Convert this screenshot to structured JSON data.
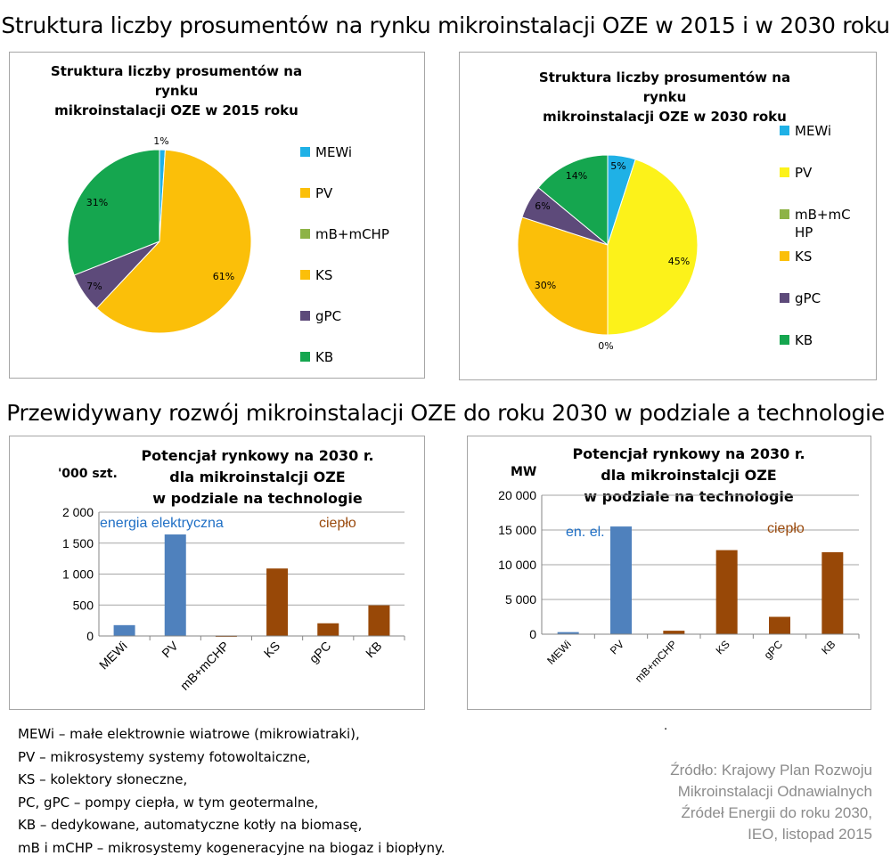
{
  "heading1": "Struktura liczby prosumentów na rynku mikroinstalacji OZE w 2015 i w 2030 roku",
  "heading2": "Przewidywany rozwój mikroinstalacji OZE do roku 2030 w podziale a technologie",
  "colors": {
    "MEWi": "#1fb1e6",
    "PV_2015": "#fbbf09",
    "PV_2030": "#fcf21a",
    "mB+mCHP": "#8db346",
    "KS": "#fbbf09",
    "gPC": "#5d4a7a",
    "KB": "#15a64f",
    "bar_electric": "#4f81bd",
    "bar_heat": "#984807",
    "label_electric": "#1f6fc5",
    "label_heat": "#9a4a0d"
  },
  "chart_data": [
    {
      "type": "pie",
      "title_line1": "Struktura liczby prosumentów na rynku",
      "title_line2": "mikroinstalacji OZE w 2015 roku",
      "legend": [
        "MEWi",
        "PV",
        "mB+mCHP",
        "KS",
        "gPC",
        "KB"
      ],
      "slices": [
        {
          "name": "MEWi",
          "value": 1,
          "label": "1%"
        },
        {
          "name": "PV",
          "value": 0,
          "label": ""
        },
        {
          "name": "mB+mCHP",
          "value": 0,
          "label": ""
        },
        {
          "name": "KS",
          "value": 61,
          "label": "61%"
        },
        {
          "name": "gPC",
          "value": 7,
          "label": "7%"
        },
        {
          "name": "KB",
          "value": 31,
          "label": "31%"
        }
      ]
    },
    {
      "type": "pie",
      "title_line1": "Struktura liczby prosumentów na rynku",
      "title_line2": "mikroinstalacji OZE w 2030 roku",
      "legend": [
        "MEWi",
        "PV",
        "mB+mC\nHP",
        "KS",
        "gPC",
        "KB"
      ],
      "slices": [
        {
          "name": "MEWi",
          "value": 5,
          "label": "5%"
        },
        {
          "name": "PV",
          "value": 45,
          "label": "45%"
        },
        {
          "name": "mB+mCHP",
          "value": 0,
          "label": "0%"
        },
        {
          "name": "KS",
          "value": 30,
          "label": "30%"
        },
        {
          "name": "gPC",
          "value": 6,
          "label": "6%"
        },
        {
          "name": "KB",
          "value": 14,
          "label": "14%"
        }
      ]
    },
    {
      "type": "bar",
      "title_line1": "Potencjał rynkowy na 2030 r.",
      "title_line2": "dla mikroinstalcji OZE",
      "title_line3": "w podziale na technologie",
      "ylabel": "'000 szt.",
      "ylim": [
        0,
        2000
      ],
      "yticks": [
        "0",
        "500",
        "1 000",
        "1 500",
        "2 000"
      ],
      "categories": [
        "MEWi",
        "PV",
        "mB+mCHP",
        "KS",
        "gPC",
        "KB"
      ],
      "values": [
        175,
        1640,
        8,
        1090,
        205,
        495
      ],
      "group_label_electric": "energia elektryczna",
      "group_label_heat": "ciepło"
    },
    {
      "type": "bar",
      "title_line1": "Potencjał rynkowy  na 2030 r.",
      "title_line2": "dla mikroinstalcji OZE",
      "title_line3": "w podziale na technologie",
      "ylabel": "MW",
      "ylim": [
        0,
        20000
      ],
      "yticks": [
        "0",
        "5 000",
        "10 000",
        "15 000",
        "20 000"
      ],
      "categories": [
        "MEWi",
        "PV",
        "mB+mCHP",
        "KS",
        "gPC",
        "KB"
      ],
      "values": [
        300,
        15500,
        500,
        12100,
        2500,
        11800
      ],
      "group_label_electric": "en. el.",
      "group_label_heat": "ciepło"
    }
  ],
  "glossary": [
    "MEWi – małe elektrownie wiatrowe (mikrowiatraki),",
    "PV – mikrosystemy systemy fotowoltaiczne,",
    "KS – kolektory słoneczne,",
    "PC, gPC – pompy ciepła, w tym geotermalne,",
    "KB – dedykowane, automatyczne kotły na biomasę,",
    "mB i mCHP – mikrosystemy kogeneracyjne na biogaz i biopłyny."
  ],
  "source": [
    "Źródło: Krajowy Plan Rozwoju",
    "Mikroinstalacji Odnawialnych",
    "Źródeł Energii do roku 2030,",
    "IEO, listopad 2015"
  ],
  "dot": "."
}
